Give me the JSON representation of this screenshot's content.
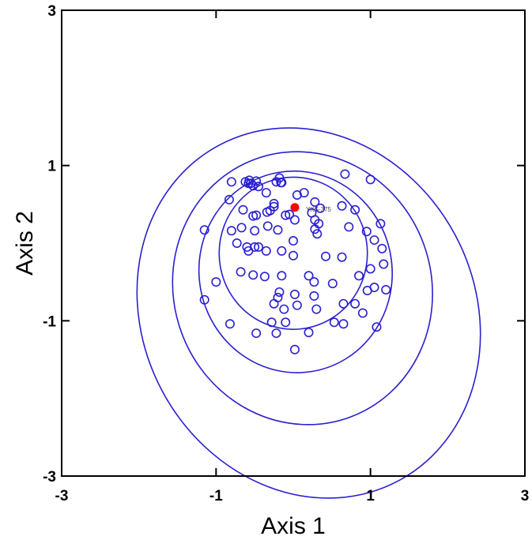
{
  "chart_data": {
    "type": "scatter",
    "xlabel": "Axis 1",
    "ylabel": "Axis 2",
    "xlim": [
      -3,
      3
    ],
    "ylim": [
      -3,
      3
    ],
    "x_ticks": [
      -3,
      -1,
      1,
      3
    ],
    "y_ticks": [
      -3,
      -1,
      1,
      3
    ],
    "x_tick_labels": [
      "-3",
      "-1",
      "1",
      "3"
    ],
    "y_tick_labels": [
      "-3",
      "-1",
      "1",
      "3"
    ],
    "grid": false,
    "colors": {
      "points": "#2a1fd1",
      "ellipses": "#2a1fd1",
      "highlight": "#ff0000",
      "axes": "#000000"
    },
    "ellipses": [
      {
        "cx": 0.0,
        "cy": -0.13,
        "rx": 0.96,
        "ry": 0.98,
        "angle": 0
      },
      {
        "cx": 0.03,
        "cy": -0.37,
        "rx": 1.25,
        "ry": 1.3,
        "angle": -10
      },
      {
        "cx": 0.12,
        "cy": -0.58,
        "rx": 1.67,
        "ry": 1.77,
        "angle": -20
      },
      {
        "cx": 0.2,
        "cy": -0.9,
        "rx": 2.15,
        "ry": 2.45,
        "angle": -28
      }
    ],
    "highlight": {
      "x": 0.02,
      "y": 0.46,
      "label": "YKS-375"
    },
    "points": [
      [
        -0.8,
        0.79
      ],
      [
        -0.55,
        0.77
      ],
      [
        -0.58,
        0.77
      ],
      [
        -0.62,
        0.79
      ],
      [
        -0.57,
        0.81
      ],
      [
        -0.48,
        0.8
      ],
      [
        -0.52,
        0.74
      ],
      [
        -0.45,
        0.73
      ],
      [
        -0.35,
        0.65
      ],
      [
        -0.22,
        0.79
      ],
      [
        -0.18,
        0.84
      ],
      [
        -0.15,
        0.78
      ],
      [
        -0.16,
        0.78
      ],
      [
        0.05,
        0.62
      ],
      [
        0.14,
        0.65
      ],
      [
        0.67,
        0.89
      ],
      [
        1.0,
        0.82
      ],
      [
        0.28,
        0.53
      ],
      [
        -0.83,
        0.56
      ],
      [
        -0.65,
        0.43
      ],
      [
        -0.52,
        0.35
      ],
      [
        -0.48,
        0.36
      ],
      [
        -0.3,
        0.42
      ],
      [
        -0.25,
        0.51
      ],
      [
        -0.25,
        0.47
      ],
      [
        -0.1,
        0.36
      ],
      [
        -0.05,
        0.37
      ],
      [
        -0.34,
        0.4
      ],
      [
        0.24,
        0.39
      ],
      [
        0.35,
        0.45
      ],
      [
        0.63,
        0.48
      ],
      [
        0.8,
        0.43
      ],
      [
        -1.15,
        0.17
      ],
      [
        -0.8,
        0.16
      ],
      [
        -0.67,
        0.2
      ],
      [
        -0.5,
        0.16
      ],
      [
        -0.33,
        0.22
      ],
      [
        -0.2,
        0.17
      ],
      [
        0.02,
        0.3
      ],
      [
        0.28,
        0.18
      ],
      [
        0.28,
        0.3
      ],
      [
        0.31,
        0.12
      ],
      [
        0.33,
        0.25
      ],
      [
        0.72,
        0.21
      ],
      [
        0.95,
        0.15
      ],
      [
        1.13,
        0.25
      ],
      [
        1.05,
        0.04
      ],
      [
        1.15,
        -0.07
      ],
      [
        -0.73,
        0.0
      ],
      [
        -0.6,
        -0.05
      ],
      [
        -0.58,
        -0.1
      ],
      [
        -0.45,
        -0.05
      ],
      [
        -0.5,
        -0.05
      ],
      [
        -0.35,
        -0.1
      ],
      [
        -0.15,
        -0.1
      ],
      [
        0.0,
        0.03
      ],
      [
        0.0,
        -0.16
      ],
      [
        0.42,
        -0.17
      ],
      [
        0.63,
        -0.18
      ],
      [
        1.0,
        -0.33
      ],
      [
        1.17,
        -0.27
      ],
      [
        1.05,
        -0.57
      ],
      [
        1.2,
        -0.6
      ],
      [
        -0.68,
        -0.37
      ],
      [
        -0.52,
        -0.41
      ],
      [
        -0.37,
        -0.43
      ],
      [
        -0.15,
        -0.42
      ],
      [
        0.2,
        -0.42
      ],
      [
        0.85,
        -0.42
      ],
      [
        -1.0,
        -0.5
      ],
      [
        -0.18,
        -0.63
      ],
      [
        -0.2,
        -0.7
      ],
      [
        0.02,
        -0.66
      ],
      [
        0.27,
        -0.5
      ],
      [
        0.51,
        -0.52
      ],
      [
        0.96,
        -0.61
      ],
      [
        0.27,
        -0.68
      ],
      [
        0.65,
        -0.78
      ],
      [
        0.8,
        -0.78
      ],
      [
        0.05,
        -0.8
      ],
      [
        -1.15,
        -0.73
      ],
      [
        -0.25,
        -0.78
      ],
      [
        -0.12,
        -0.85
      ],
      [
        0.3,
        -0.85
      ],
      [
        0.9,
        -0.9
      ],
      [
        -0.82,
        -1.04
      ],
      [
        -0.28,
        -1.02
      ],
      [
        -0.1,
        -1.02
      ],
      [
        0.53,
        -1.02
      ],
      [
        0.65,
        -1.04
      ],
      [
        1.08,
        -1.08
      ],
      [
        -0.48,
        -1.16
      ],
      [
        -0.22,
        -1.16
      ],
      [
        0.2,
        -1.15
      ],
      [
        0.02,
        -1.37
      ]
    ]
  }
}
